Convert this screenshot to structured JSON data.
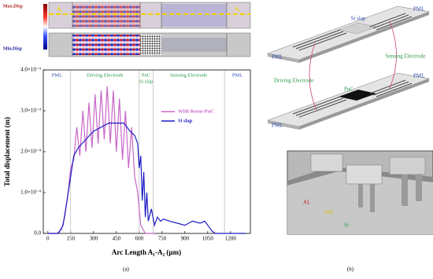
{
  "chart_data": {
    "type": "line",
    "x_label": "Arc Length A₁-A₂ (µm)",
    "y_label": "Total displacement (m)",
    "xlim": [
      -30,
      1330
    ],
    "xticks": [
      0,
      150,
      300,
      450,
      600,
      750,
      900,
      1050,
      1200
    ],
    "ylim": [
      0,
      0.0004
    ],
    "yticks": [
      {
        "value": 0,
        "label": "0.0"
      },
      {
        "value": 0.0001,
        "label": "1.0×10⁻⁴"
      },
      {
        "value": 0.0002,
        "label": "2.0×10⁻⁴"
      },
      {
        "value": 0.0003,
        "label": "3.0×10⁻⁴"
      },
      {
        "value": 0.0004,
        "label": "4.0×10⁻⁴"
      }
    ],
    "regions": [
      "PML",
      "Driving Electrode",
      "PnC",
      "Si slap",
      "Sensing Electrode",
      "PML"
    ],
    "dividers": [
      150,
      600,
      690,
      1160
    ],
    "series": [
      {
        "name": "With Reem-PnC",
        "color": "#c766c7",
        "x": [
          0,
          60,
          90,
          110,
          130,
          150,
          170,
          190,
          210,
          230,
          250,
          270,
          290,
          310,
          330,
          350,
          370,
          390,
          410,
          430,
          450,
          470,
          490,
          510,
          530,
          550,
          570,
          590,
          610,
          640,
          700
        ],
        "values": [
          0,
          0,
          1e-05,
          4e-05,
          9e-05,
          0.00016,
          0.00018,
          0.00026,
          0.00019,
          0.0003,
          0.0002,
          0.00032,
          0.00021,
          0.00034,
          0.00022,
          0.00035,
          0.00023,
          0.00036,
          0.00022,
          0.00035,
          0.0002,
          0.00033,
          0.00018,
          0.0003,
          0.00016,
          0.00026,
          0.00014,
          0.0001,
          2e-05,
          0,
          0
        ]
      },
      {
        "name": "Si slap",
        "color": "#1c1cc4",
        "x": [
          0,
          70,
          100,
          130,
          150,
          170,
          200,
          250,
          300,
          350,
          400,
          450,
          500,
          540,
          570,
          590,
          600,
          610,
          620,
          630,
          640,
          650,
          660,
          680,
          700,
          720,
          740,
          760,
          800,
          850,
          900,
          950,
          1000,
          1030,
          1060,
          1080,
          1100,
          1300
        ],
        "values": [
          0,
          0,
          2e-05,
          9e-05,
          0.00014,
          0.00019,
          0.00021,
          0.00023,
          0.00025,
          0.00026,
          0.00027,
          0.00027,
          0.00027,
          0.00025,
          0.00024,
          0.00022,
          0.00016,
          0.00019,
          8e-05,
          0.00015,
          4e-05,
          0.0001,
          3e-05,
          6e-05,
          2e-05,
          4e-05,
          3e-05,
          3.5e-05,
          3e-05,
          2.5e-05,
          2e-05,
          3e-05,
          2.5e-05,
          3e-05,
          1.5e-05,
          5e-06,
          0,
          0
        ]
      }
    ]
  },
  "field_maps": {
    "max_label": "Max.Disp",
    "min_label": "Min.Disp",
    "start": "A₁",
    "end": "A₂"
  },
  "panel_b": {
    "top_pml_left": "PML",
    "top_center": "Si slap",
    "top_pml_right": "PML",
    "sensing": "Sensing Electrode",
    "driving": "Driving Electrode",
    "bottom_pml_left": "PML",
    "bottom_center": "PnC",
    "bottom_pml_right": "PML",
    "layer_al": "AL",
    "layer_sin": "SiN",
    "layer_si": "Si"
  },
  "captions": {
    "a": "(a)",
    "b": "(b)"
  }
}
